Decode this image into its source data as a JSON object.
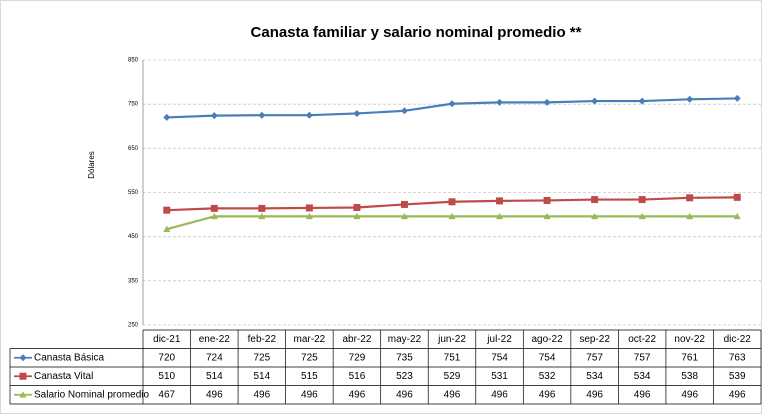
{
  "chart_data": {
    "type": "line",
    "title": "Canasta familiar y salario nominal promedio **",
    "y_label": "Dólares",
    "categories": [
      "dic-21",
      "ene-22",
      "feb-22",
      "mar-22",
      "abr-22",
      "may-22",
      "jun-22",
      "jul-22",
      "ago-22",
      "sep-22",
      "oct-22",
      "nov-22",
      "dic-22"
    ],
    "series": [
      {
        "name": "Canasta Básica",
        "color": "#4a7ebb",
        "marker": "diamond",
        "values": [
          720,
          724,
          725,
          725,
          729,
          735,
          751,
          754,
          754,
          757,
          757,
          761,
          763
        ]
      },
      {
        "name": "Canasta Vital",
        "color": "#be4b48",
        "marker": "square",
        "values": [
          510,
          514,
          514,
          515,
          516,
          523,
          529,
          531,
          532,
          534,
          534,
          538,
          539
        ]
      },
      {
        "name": "Salario Nominal promedio",
        "color": "#98b954",
        "marker": "triangle",
        "values": [
          467,
          496,
          496,
          496,
          496,
          496,
          496,
          496,
          496,
          496,
          496,
          496,
          496
        ]
      }
    ],
    "ylim": [
      250,
      850
    ],
    "yticks": [
      250,
      350,
      450,
      550,
      650,
      750,
      850
    ],
    "grid": true
  }
}
